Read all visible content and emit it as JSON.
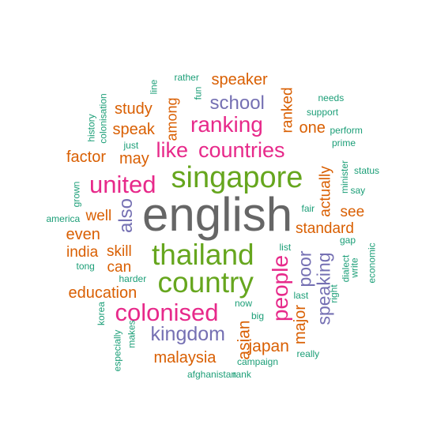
{
  "palette": {
    "teal": "#1b9e77",
    "orange": "#d95f02",
    "purple": "#7570b3",
    "magenta": "#e7298a",
    "green": "#66a61e",
    "gray": "#666666"
  },
  "words": [
    {
      "text": "english",
      "color": "gray",
      "weight": 10
    },
    {
      "text": "singapore",
      "color": "green",
      "weight": 8
    },
    {
      "text": "thailand",
      "color": "green",
      "weight": 8
    },
    {
      "text": "country",
      "color": "green",
      "weight": 8
    },
    {
      "text": "countries",
      "color": "magenta",
      "weight": 7
    },
    {
      "text": "united",
      "color": "magenta",
      "weight": 7
    },
    {
      "text": "colonised",
      "color": "magenta",
      "weight": 7
    },
    {
      "text": "ranking",
      "color": "magenta",
      "weight": 7
    },
    {
      "text": "like",
      "color": "magenta",
      "weight": 7
    },
    {
      "text": "people",
      "color": "magenta",
      "weight": 6
    },
    {
      "text": "kingdom",
      "color": "purple",
      "weight": 5
    },
    {
      "text": "school",
      "color": "purple",
      "weight": 5
    },
    {
      "text": "also",
      "color": "purple",
      "weight": 5
    },
    {
      "text": "poor",
      "color": "purple",
      "weight": 5
    },
    {
      "text": "speaking",
      "color": "purple",
      "weight": 5
    },
    {
      "text": "asian",
      "color": "orange",
      "weight": 4
    },
    {
      "text": "japan",
      "color": "orange",
      "weight": 4
    },
    {
      "text": "major",
      "color": "orange",
      "weight": 4
    },
    {
      "text": "malaysia",
      "color": "orange",
      "weight": 4
    },
    {
      "text": "education",
      "color": "orange",
      "weight": 4
    },
    {
      "text": "standard",
      "color": "orange",
      "weight": 4
    },
    {
      "text": "actually",
      "color": "orange",
      "weight": 4
    },
    {
      "text": "ranked",
      "color": "orange",
      "weight": 4
    },
    {
      "text": "speaker",
      "color": "orange",
      "weight": 4
    },
    {
      "text": "study",
      "color": "orange",
      "weight": 4
    },
    {
      "text": "speak",
      "color": "orange",
      "weight": 4
    },
    {
      "text": "among",
      "color": "orange",
      "weight": 4
    },
    {
      "text": "factor",
      "color": "orange",
      "weight": 4
    },
    {
      "text": "may",
      "color": "orange",
      "weight": 4
    },
    {
      "text": "one",
      "color": "orange",
      "weight": 4
    },
    {
      "text": "see",
      "color": "orange",
      "weight": 4
    },
    {
      "text": "well",
      "color": "orange",
      "weight": 4
    },
    {
      "text": "even",
      "color": "orange",
      "weight": 4
    },
    {
      "text": "india",
      "color": "orange",
      "weight": 4
    },
    {
      "text": "skill",
      "color": "orange",
      "weight": 4
    },
    {
      "text": "can",
      "color": "orange",
      "weight": 4
    },
    {
      "text": "needs",
      "color": "teal",
      "weight": 1
    },
    {
      "text": "support",
      "color": "teal",
      "weight": 1
    },
    {
      "text": "perform",
      "color": "teal",
      "weight": 1
    },
    {
      "text": "prime",
      "color": "teal",
      "weight": 1
    },
    {
      "text": "minister",
      "color": "teal",
      "weight": 1
    },
    {
      "text": "status",
      "color": "teal",
      "weight": 1
    },
    {
      "text": "say",
      "color": "teal",
      "weight": 1
    },
    {
      "text": "fair",
      "color": "teal",
      "weight": 1
    },
    {
      "text": "gap",
      "color": "teal",
      "weight": 1
    },
    {
      "text": "list",
      "color": "teal",
      "weight": 1
    },
    {
      "text": "dialect",
      "color": "teal",
      "weight": 1
    },
    {
      "text": "write",
      "color": "teal",
      "weight": 1
    },
    {
      "text": "economic",
      "color": "teal",
      "weight": 1
    },
    {
      "text": "right",
      "color": "teal",
      "weight": 1
    },
    {
      "text": "last",
      "color": "teal",
      "weight": 1
    },
    {
      "text": "now",
      "color": "teal",
      "weight": 1
    },
    {
      "text": "big",
      "color": "teal",
      "weight": 1
    },
    {
      "text": "really",
      "color": "teal",
      "weight": 1
    },
    {
      "text": "campaign",
      "color": "teal",
      "weight": 1
    },
    {
      "text": "afghanistan",
      "color": "teal",
      "weight": 1
    },
    {
      "text": "rank",
      "color": "teal",
      "weight": 1
    },
    {
      "text": "especially",
      "color": "teal",
      "weight": 1
    },
    {
      "text": "korea",
      "color": "teal",
      "weight": 1
    },
    {
      "text": "makes",
      "color": "teal",
      "weight": 1
    },
    {
      "text": "harder",
      "color": "teal",
      "weight": 1
    },
    {
      "text": "tong",
      "color": "teal",
      "weight": 1
    },
    {
      "text": "america",
      "color": "teal",
      "weight": 1
    },
    {
      "text": "grown",
      "color": "teal",
      "weight": 1
    },
    {
      "text": "just",
      "color": "teal",
      "weight": 1
    },
    {
      "text": "history",
      "color": "teal",
      "weight": 1
    },
    {
      "text": "colonisation",
      "color": "teal",
      "weight": 1
    },
    {
      "text": "line",
      "color": "teal",
      "weight": 1
    },
    {
      "text": "rather",
      "color": "teal",
      "weight": 1
    },
    {
      "text": "fun",
      "color": "teal",
      "weight": 1
    }
  ]
}
